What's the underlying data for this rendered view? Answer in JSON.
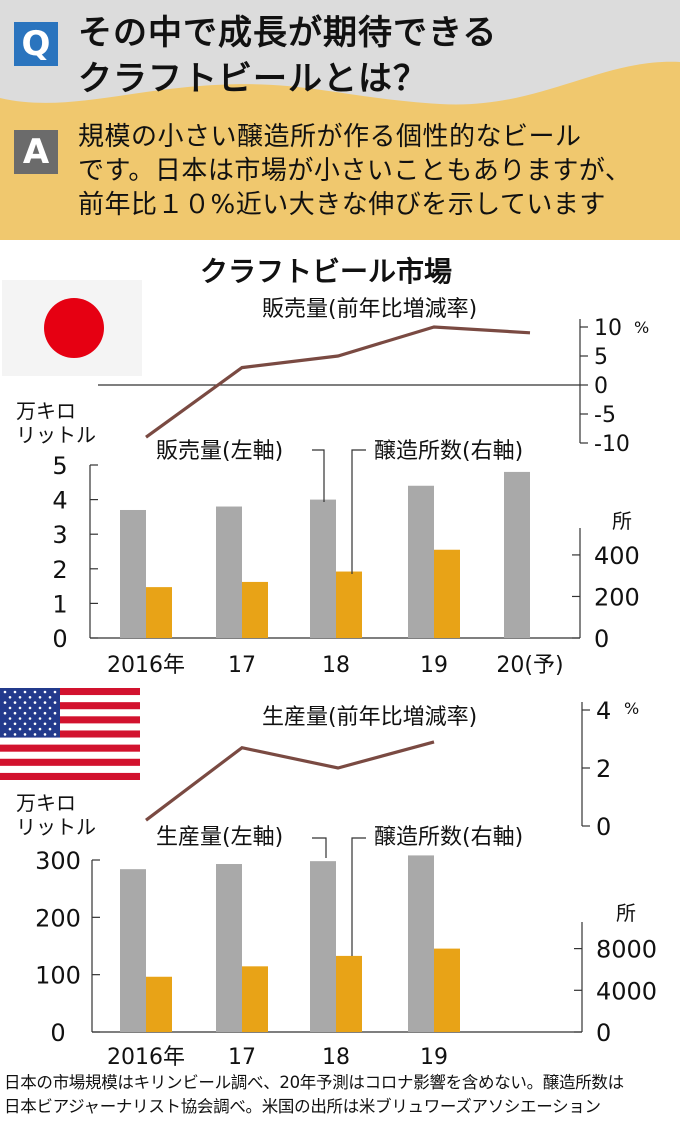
{
  "header": {
    "q_badge": "Q",
    "question": "その中で成長が期待できる\nクラフトビールとは？",
    "a_badge": "A",
    "answer": "規模の小さい醸造所が作る個性的なビール\nです。日本は市場が小さいこともありますが、\n前年比１０%近い大きな伸びを示しています"
  },
  "main_title": "クラフトビール市場",
  "colors": {
    "header_bg": "#f0c86e",
    "header_gray": "#dcdcdc",
    "q_badge": "#2a74be",
    "a_badge": "#6b6b6b",
    "bar_gray": "#a9a9a9",
    "bar_orange": "#e8a317",
    "line": "#7a4a42",
    "flag_red": "#e60012",
    "us_blue": "#233a8c",
    "us_red": "#d2122e"
  },
  "chart_data": [
    {
      "type": "line",
      "name": "japan-growth",
      "title": "販売量(前年比増減率)",
      "x": [
        "2016",
        "2017",
        "2018",
        "2019",
        "2020"
      ],
      "values": [
        -9,
        3,
        5,
        10,
        9
      ],
      "ylim": [
        -10,
        10
      ],
      "yticks": [
        10,
        5,
        0,
        -5,
        -10
      ],
      "yunit": "%",
      "zero_line": true
    },
    {
      "type": "bar",
      "name": "japan-market",
      "categories": [
        "2016年",
        "17",
        "18",
        "19",
        "20(予)"
      ],
      "left_axis_label": "万キロ\nリットル",
      "right_axis_label": "所",
      "series": [
        {
          "name": "販売量(左軸)",
          "axis": "left",
          "color": "#a9a9a9",
          "values": [
            3.7,
            3.8,
            4.0,
            4.4,
            4.8
          ]
        },
        {
          "name": "醸造所数(右軸)",
          "axis": "right",
          "color": "#e8a317",
          "values": [
            245,
            270,
            320,
            425,
            null
          ]
        }
      ],
      "left_ylim": [
        0,
        5
      ],
      "left_ticks": [
        0,
        1,
        2,
        3,
        4,
        5
      ],
      "right_ylim": [
        0,
        833
      ],
      "right_ticks": [
        0,
        200,
        400
      ]
    },
    {
      "type": "line",
      "name": "us-growth",
      "title": "生産量(前年比増減率)",
      "x": [
        "2016",
        "2017",
        "2018",
        "2019"
      ],
      "values": [
        0.2,
        2.7,
        2.0,
        2.9
      ],
      "ylim": [
        0,
        4
      ],
      "yticks": [
        4,
        2,
        0
      ],
      "yunit": "%",
      "zero_line": false
    },
    {
      "type": "bar",
      "name": "us-market",
      "categories": [
        "2016年",
        "17",
        "18",
        "19"
      ],
      "left_axis_label": "万キロ\nリットル",
      "right_axis_label": "所",
      "series": [
        {
          "name": "生産量(左軸)",
          "axis": "left",
          "color": "#a9a9a9",
          "values": [
            284,
            293,
            298,
            308
          ]
        },
        {
          "name": "醸造所数(右軸)",
          "axis": "right",
          "color": "#e8a317",
          "values": [
            5300,
            6300,
            7300,
            8000
          ]
        }
      ],
      "left_ylim": [
        0,
        300
      ],
      "left_ticks": [
        0,
        100,
        200,
        300
      ],
      "right_ylim": [
        0,
        16500
      ],
      "right_ticks": [
        0,
        4000,
        8000
      ]
    }
  ],
  "footnote": "日本の市場規模はキリンビール調べ、20年予測はコロナ影響を含めない。醸造所数は\n日本ビアジャーナリスト協会調べ。米国の出所は米ブリュワーズアソシエーション"
}
